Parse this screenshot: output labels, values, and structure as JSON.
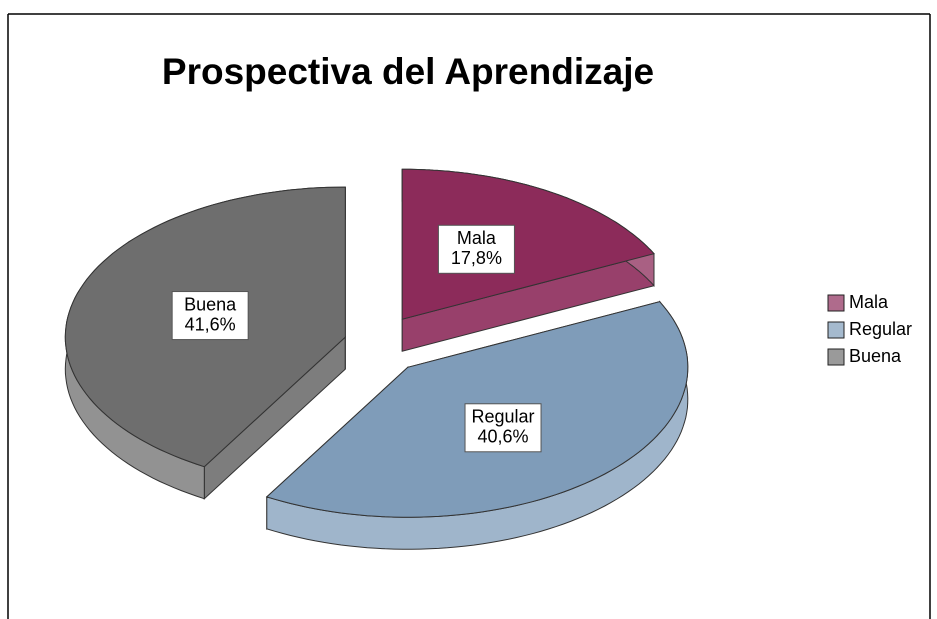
{
  "chart_data": {
    "type": "pie3d",
    "title": "Prospectiva del Aprendizaje",
    "categories": [
      "Mala",
      "Regular",
      "Buena"
    ],
    "values": [
      17.8,
      40.6,
      41.6
    ],
    "value_labels": [
      "17,8%",
      "40,6%",
      "41,6%"
    ],
    "colors": [
      "#8c2b5a",
      "#7f9cb9",
      "#6e6e6e"
    ],
    "legend": "right"
  }
}
